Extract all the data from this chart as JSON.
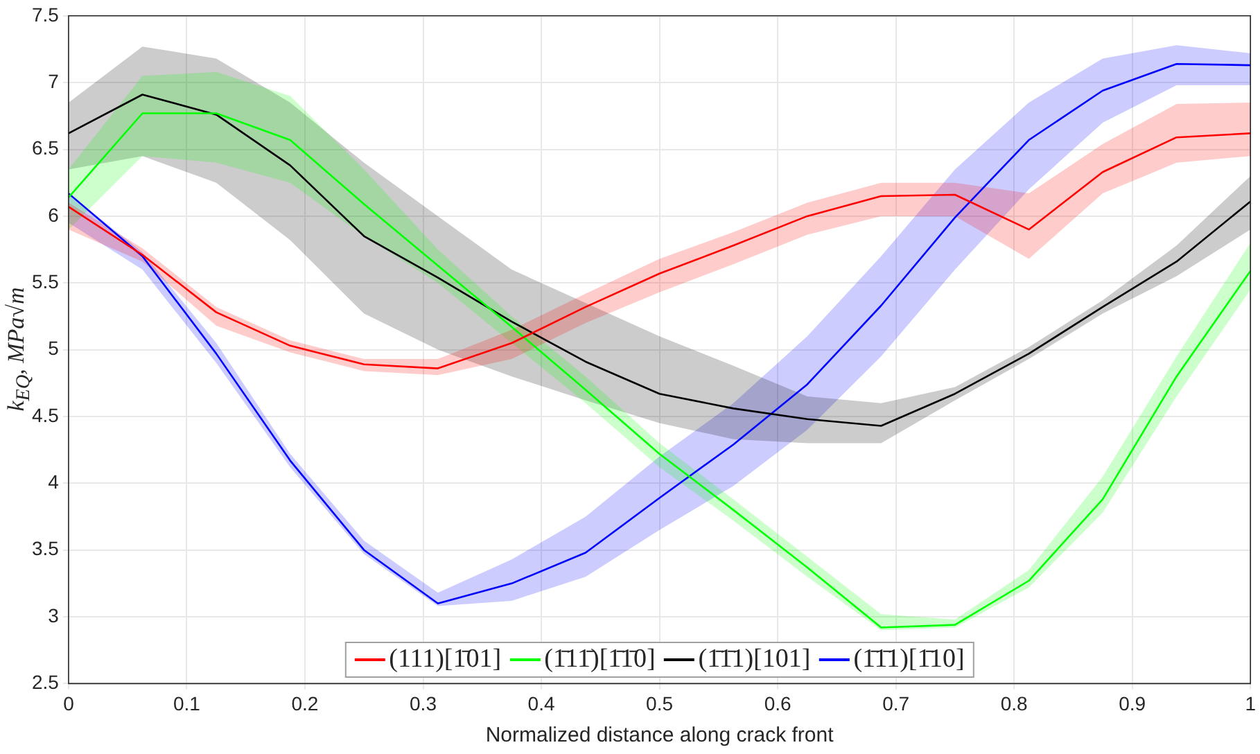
{
  "chart_data": {
    "type": "line",
    "xlabel": "Normalized distance along crack front",
    "ylabel": "k$_{EQ}$, MPa√m",
    "x": [
      0,
      0.0625,
      0.125,
      0.1875,
      0.25,
      0.3125,
      0.375,
      0.4375,
      0.5,
      0.5625,
      0.625,
      0.6875,
      0.75,
      0.8125,
      0.875,
      0.9375,
      1
    ],
    "xlim": [
      0,
      1
    ],
    "xticks": [
      0,
      0.1,
      0.2,
      0.3,
      0.4,
      0.5,
      0.6,
      0.7,
      0.8,
      0.9,
      1
    ],
    "ylim": [
      2.5,
      7.5
    ],
    "yticks": [
      2.5,
      3,
      3.5,
      4,
      4.5,
      5,
      5.5,
      6,
      6.5,
      7,
      7.5
    ],
    "grid": true,
    "legend": "bottom",
    "marker": "none",
    "line_style": "solid",
    "series": [
      {
        "name": "(111)[1̄01]",
        "color": "#ff0000",
        "values": [
          6.07,
          5.71,
          5.28,
          5.03,
          4.89,
          4.86,
          5.05,
          5.32,
          5.57,
          5.78,
          6.0,
          6.15,
          6.16,
          5.9,
          6.33,
          6.59,
          6.62
        ],
        "lower": [
          5.9,
          5.66,
          5.18,
          4.98,
          4.84,
          4.81,
          4.93,
          5.2,
          5.43,
          5.64,
          5.86,
          6.0,
          6.0,
          5.68,
          6.17,
          6.4,
          6.45
        ],
        "upper": [
          6.1,
          5.76,
          5.32,
          5.07,
          4.93,
          4.93,
          5.15,
          5.42,
          5.68,
          5.88,
          6.1,
          6.25,
          6.25,
          6.17,
          6.54,
          6.84,
          6.85
        ]
      },
      {
        "name": "(1̄11̄)[1̄1̄0]",
        "color": "#00ff00",
        "values": [
          6.14,
          6.77,
          6.77,
          6.57,
          6.09,
          5.63,
          5.17,
          4.7,
          4.22,
          3.8,
          3.37,
          2.92,
          2.94,
          3.27,
          3.88,
          4.8,
          5.59
        ],
        "lower": [
          5.9,
          6.45,
          6.4,
          6.25,
          5.85,
          5.5,
          5.05,
          4.6,
          4.12,
          3.72,
          3.3,
          2.9,
          2.92,
          3.22,
          3.78,
          4.65,
          5.45
        ],
        "upper": [
          6.35,
          7.05,
          7.08,
          6.9,
          6.35,
          5.75,
          5.25,
          4.8,
          4.3,
          3.88,
          3.45,
          3.02,
          2.98,
          3.35,
          4.05,
          4.95,
          5.8
        ]
      },
      {
        "name": "(1̄1̄1)[101]",
        "color": "#000000",
        "values": [
          6.62,
          6.91,
          6.76,
          6.38,
          5.85,
          5.54,
          5.21,
          4.91,
          4.67,
          4.56,
          4.48,
          4.43,
          4.67,
          4.97,
          5.32,
          5.66,
          6.11
        ],
        "lower": [
          6.35,
          6.45,
          6.25,
          5.82,
          5.27,
          5.0,
          4.8,
          4.62,
          4.45,
          4.33,
          4.3,
          4.3,
          4.62,
          4.93,
          5.27,
          5.55,
          5.9
        ],
        "upper": [
          6.85,
          7.27,
          7.18,
          6.85,
          6.4,
          6.0,
          5.6,
          5.35,
          5.1,
          4.88,
          4.65,
          4.6,
          4.72,
          5.02,
          5.37,
          5.78,
          6.3
        ]
      },
      {
        "name": "(1̄1̄1)[1̄10]",
        "color": "#0000ff",
        "values": [
          6.17,
          5.7,
          4.97,
          4.17,
          3.5,
          3.1,
          3.25,
          3.48,
          3.89,
          4.29,
          4.74,
          5.33,
          5.99,
          6.57,
          6.94,
          7.14,
          7.13
        ],
        "lower": [
          5.95,
          5.6,
          4.9,
          4.12,
          3.47,
          3.08,
          3.12,
          3.3,
          3.65,
          3.98,
          4.4,
          4.95,
          5.6,
          6.2,
          6.7,
          6.98,
          6.98
        ],
        "upper": [
          6.17,
          5.73,
          5.05,
          4.22,
          3.57,
          3.18,
          3.43,
          3.75,
          4.2,
          4.6,
          5.1,
          5.7,
          6.35,
          6.85,
          7.18,
          7.28,
          7.22
        ]
      }
    ]
  }
}
